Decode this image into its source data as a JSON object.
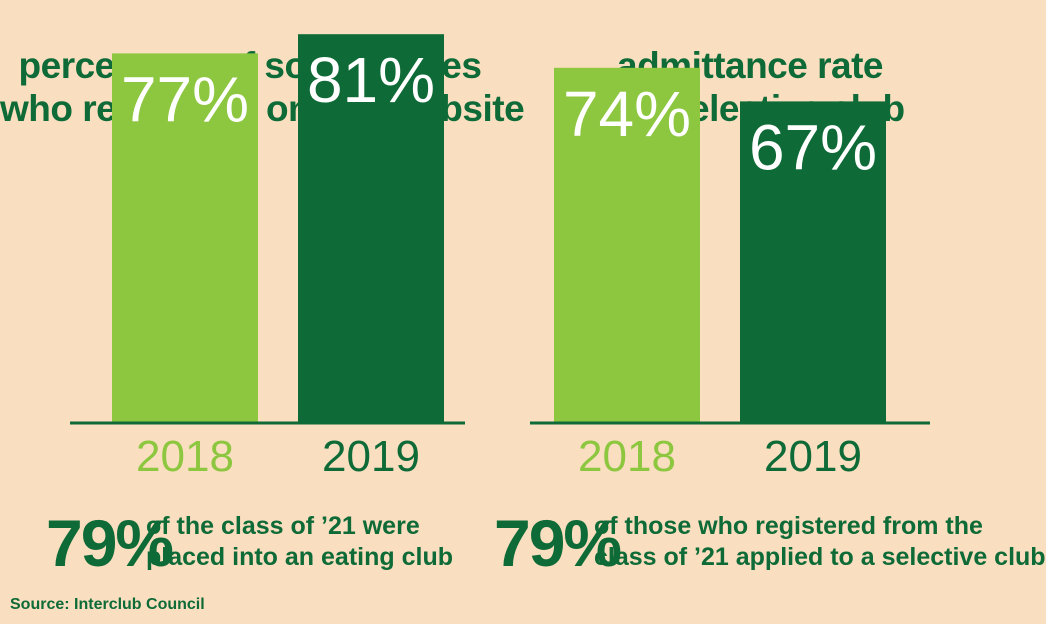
{
  "colors": {
    "background": "#f9dfc0",
    "light_green": "#8dc63f",
    "dark_green": "#0e6a36",
    "text": "#0e6a36"
  },
  "chart_data": [
    {
      "type": "bar",
      "title_lines": [
        "percentage of sophomores",
        "who registered on ICC website"
      ],
      "categories": [
        "2018",
        "2019"
      ],
      "values": [
        77,
        81
      ],
      "value_labels": [
        "77%",
        "81%"
      ],
      "ylim": [
        0,
        100
      ],
      "grid": false
    },
    {
      "type": "bar",
      "title_lines": [
        "admittance rate",
        "to a selective club"
      ],
      "categories": [
        "2018",
        "2019"
      ],
      "values": [
        74,
        67
      ],
      "value_labels": [
        "74%",
        "67%"
      ],
      "ylim": [
        0,
        100
      ],
      "grid": false
    }
  ],
  "footnotes": [
    {
      "big": "79%",
      "lines": [
        "of the class of ’21 were",
        "placed into an eating club"
      ]
    },
    {
      "big": "79%",
      "lines": [
        "of those who registered from the",
        "class of ’21 applied to a selective club"
      ]
    }
  ],
  "source": "Source: Interclub Council"
}
